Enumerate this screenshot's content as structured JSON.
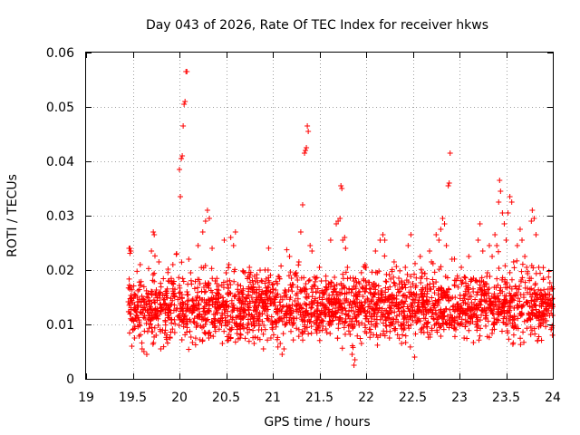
{
  "chart_data": {
    "type": "scatter",
    "title": "Day 043 of 2026, Rate Of TEC Index for receiver hkws",
    "xlabel": "GPS time / hours",
    "ylabel": "ROTI / TECUs",
    "xlim": [
      19,
      24
    ],
    "ylim": [
      0,
      0.06
    ],
    "x_ticks": [
      19,
      19.5,
      20,
      20.5,
      21,
      21.5,
      22,
      22.5,
      23,
      23.5,
      24
    ],
    "x_tick_labels": [
      "19",
      "19.5",
      "20",
      "20.5",
      "21",
      "21.5",
      "22",
      "22.5",
      "23",
      "23.5",
      "24"
    ],
    "y_ticks": [
      0,
      0.01,
      0.02,
      0.03,
      0.04,
      0.05,
      0.06
    ],
    "y_tick_labels": [
      "0",
      "0.01",
      "0.02",
      "0.03",
      "0.04",
      "0.05",
      "0.06"
    ],
    "grid": true,
    "marker": "plus",
    "color": "#ff0000",
    "series": [
      {
        "points": [
          [
            19.47,
            0.024
          ],
          [
            19.48,
            0.0235
          ],
          [
            19.49,
            0.006
          ],
          [
            19.5,
            0.009
          ],
          [
            19.52,
            0.0075
          ],
          [
            19.55,
            0.015
          ],
          [
            19.58,
            0.021
          ],
          [
            19.6,
            0.0055
          ],
          [
            19.62,
            0.005
          ],
          [
            19.65,
            0.0045
          ],
          [
            19.68,
            0.012
          ],
          [
            19.7,
            0.0235
          ],
          [
            19.72,
            0.027
          ],
          [
            19.73,
            0.0265
          ],
          [
            19.75,
            0.008
          ],
          [
            19.78,
            0.0215
          ],
          [
            19.8,
            0.0055
          ],
          [
            19.83,
            0.0145
          ],
          [
            19.85,
            0.0105
          ],
          [
            19.88,
            0.018
          ],
          [
            19.9,
            0.0075
          ],
          [
            19.93,
            0.021
          ],
          [
            19.95,
            0.0085
          ],
          [
            19.97,
            0.023
          ],
          [
            20.0,
            0.0385
          ],
          [
            20.02,
            0.0405
          ],
          [
            20.03,
            0.041
          ],
          [
            20.04,
            0.0465
          ],
          [
            20.05,
            0.0505
          ],
          [
            20.06,
            0.051
          ],
          [
            20.08,
            0.0565
          ],
          [
            20.07,
            0.0565
          ],
          [
            20.01,
            0.0335
          ],
          [
            20.1,
            0.022
          ],
          [
            20.12,
            0.0195
          ],
          [
            20.15,
            0.0125
          ],
          [
            20.18,
            0.0095
          ],
          [
            20.2,
            0.0245
          ],
          [
            20.22,
            0.0175
          ],
          [
            20.25,
            0.027
          ],
          [
            20.28,
            0.029
          ],
          [
            20.3,
            0.031
          ],
          [
            20.32,
            0.0295
          ],
          [
            20.35,
            0.024
          ],
          [
            20.38,
            0.0095
          ],
          [
            20.4,
            0.0175
          ],
          [
            20.43,
            0.0135
          ],
          [
            20.46,
            0.0065
          ],
          [
            20.48,
            0.0255
          ],
          [
            20.5,
            0.0195
          ],
          [
            20.53,
            0.021
          ],
          [
            20.55,
            0.026
          ],
          [
            20.58,
            0.0245
          ],
          [
            20.6,
            0.027
          ],
          [
            20.63,
            0.016
          ],
          [
            20.65,
            0.0075
          ],
          [
            20.68,
            0.0145
          ],
          [
            20.7,
            0.0195
          ],
          [
            20.73,
            0.0085
          ],
          [
            20.75,
            0.0205
          ],
          [
            20.78,
            0.0115
          ],
          [
            20.8,
            0.0065
          ],
          [
            20.83,
            0.0185
          ],
          [
            20.85,
            0.009
          ],
          [
            20.88,
            0.0155
          ],
          [
            20.9,
            0.0055
          ],
          [
            20.93,
            0.0125
          ],
          [
            20.95,
            0.02
          ],
          [
            20.98,
            0.0075
          ],
          [
            21.0,
            0.0165
          ],
          [
            21.03,
            0.0105
          ],
          [
            21.05,
            0.0175
          ],
          [
            21.08,
            0.0065
          ],
          [
            21.1,
            0.0045
          ],
          [
            21.12,
            0.0055
          ],
          [
            21.15,
            0.0135
          ],
          [
            21.18,
            0.0225
          ],
          [
            21.2,
            0.0185
          ],
          [
            21.22,
            0.0125
          ],
          [
            21.25,
            0.0195
          ],
          [
            21.28,
            0.0215
          ],
          [
            21.3,
            0.027
          ],
          [
            21.32,
            0.032
          ],
          [
            21.34,
            0.0415
          ],
          [
            21.35,
            0.042
          ],
          [
            21.36,
            0.0425
          ],
          [
            21.37,
            0.0465
          ],
          [
            21.38,
            0.0455
          ],
          [
            21.4,
            0.0245
          ],
          [
            21.42,
            0.0235
          ],
          [
            21.45,
            0.017
          ],
          [
            21.48,
            0.0095
          ],
          [
            21.5,
            0.0205
          ],
          [
            21.52,
            0.018
          ],
          [
            21.55,
            0.0125
          ],
          [
            21.58,
            0.0085
          ],
          [
            21.6,
            0.0175
          ],
          [
            21.62,
            0.0255
          ],
          [
            21.65,
            0.0115
          ],
          [
            21.68,
            0.0285
          ],
          [
            21.7,
            0.029
          ],
          [
            21.72,
            0.0295
          ],
          [
            21.73,
            0.0355
          ],
          [
            21.74,
            0.035
          ],
          [
            21.75,
            0.0255
          ],
          [
            21.77,
            0.026
          ],
          [
            21.78,
            0.024
          ],
          [
            21.8,
            0.0205
          ],
          [
            21.82,
            0.0135
          ],
          [
            21.85,
            0.0045
          ],
          [
            21.87,
            0.0025
          ],
          [
            21.88,
            0.0035
          ],
          [
            21.9,
            0.0115
          ],
          [
            21.93,
            0.0175
          ],
          [
            21.95,
            0.0065
          ],
          [
            21.98,
            0.0125
          ],
          [
            22.0,
            0.0205
          ],
          [
            22.02,
            0.0145
          ],
          [
            22.05,
            0.0085
          ],
          [
            22.08,
            0.0175
          ],
          [
            22.1,
            0.0235
          ],
          [
            22.12,
            0.0195
          ],
          [
            22.15,
            0.0255
          ],
          [
            22.18,
            0.0265
          ],
          [
            22.2,
            0.0255
          ],
          [
            22.22,
            0.0125
          ],
          [
            22.25,
            0.0075
          ],
          [
            22.28,
            0.0155
          ],
          [
            22.3,
            0.0215
          ],
          [
            22.32,
            0.0105
          ],
          [
            22.35,
            0.0185
          ],
          [
            22.38,
            0.0065
          ],
          [
            22.4,
            0.0125
          ],
          [
            22.42,
            0.0205
          ],
          [
            22.45,
            0.0245
          ],
          [
            22.48,
            0.0265
          ],
          [
            22.5,
            0.0175
          ],
          [
            22.52,
            0.004
          ],
          [
            22.55,
            0.0105
          ],
          [
            22.58,
            0.0225
          ],
          [
            22.6,
            0.0195
          ],
          [
            22.62,
            0.0085
          ],
          [
            22.65,
            0.0145
          ],
          [
            22.68,
            0.0235
          ],
          [
            22.7,
            0.0215
          ],
          [
            22.72,
            0.0175
          ],
          [
            22.75,
            0.0265
          ],
          [
            22.78,
            0.0255
          ],
          [
            22.8,
            0.0275
          ],
          [
            22.82,
            0.0295
          ],
          [
            22.84,
            0.0285
          ],
          [
            22.86,
            0.0245
          ],
          [
            22.88,
            0.0355
          ],
          [
            22.89,
            0.036
          ],
          [
            22.9,
            0.0415
          ],
          [
            22.92,
            0.022
          ],
          [
            22.95,
            0.0095
          ],
          [
            22.98,
            0.0185
          ],
          [
            23.0,
            0.0125
          ],
          [
            23.02,
            0.0205
          ],
          [
            23.05,
            0.0075
          ],
          [
            23.08,
            0.0165
          ],
          [
            23.1,
            0.0225
          ],
          [
            23.12,
            0.0105
          ],
          [
            23.15,
            0.0185
          ],
          [
            23.18,
            0.0135
          ],
          [
            23.2,
            0.0255
          ],
          [
            23.22,
            0.0285
          ],
          [
            23.25,
            0.0235
          ],
          [
            23.28,
            0.0175
          ],
          [
            23.3,
            0.0195
          ],
          [
            23.32,
            0.0245
          ],
          [
            23.35,
            0.0225
          ],
          [
            23.38,
            0.0265
          ],
          [
            23.4,
            0.0245
          ],
          [
            23.42,
            0.0325
          ],
          [
            23.43,
            0.0365
          ],
          [
            23.44,
            0.0345
          ],
          [
            23.46,
            0.0305
          ],
          [
            23.48,
            0.0285
          ],
          [
            23.5,
            0.0255
          ],
          [
            23.52,
            0.0305
          ],
          [
            23.54,
            0.0335
          ],
          [
            23.56,
            0.0325
          ],
          [
            23.58,
            0.0215
          ],
          [
            23.6,
            0.0155
          ],
          [
            23.62,
            0.0245
          ],
          [
            23.65,
            0.0275
          ],
          [
            23.67,
            0.0255
          ],
          [
            23.7,
            0.0225
          ],
          [
            23.72,
            0.0205
          ],
          [
            23.75,
            0.0185
          ],
          [
            23.77,
            0.029
          ],
          [
            23.78,
            0.031
          ],
          [
            23.8,
            0.0295
          ],
          [
            23.82,
            0.0265
          ],
          [
            23.85,
            0.0205
          ],
          [
            23.88,
            0.0155
          ],
          [
            23.9,
            0.0185
          ],
          [
            23.92,
            0.0115
          ],
          [
            23.95,
            0.0155
          ],
          [
            23.97,
            0.0135
          ],
          [
            23.99,
            0.0165
          ]
        ],
        "dense_band": {
          "x_from": 19.45,
          "x_to": 24.0,
          "y_low": 0.005,
          "y_high": 0.02,
          "count": 2400
        }
      }
    ]
  }
}
